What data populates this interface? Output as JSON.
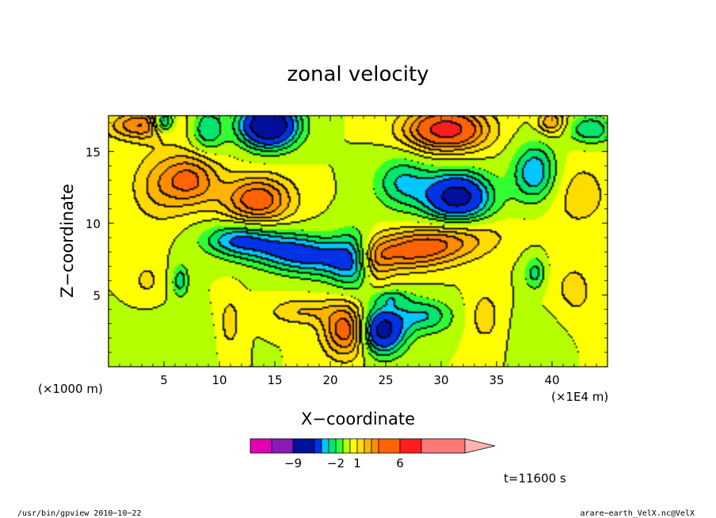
{
  "chart_data": {
    "type": "heatmap",
    "title": "zonal velocity",
    "xlabel": "X−coordinate",
    "ylabel": "Z−coordinate",
    "x_scale_label": "(×1E4 m)",
    "y_scale_label": "(×1000 m)",
    "xlim": [
      0,
      45
    ],
    "ylim": [
      0,
      17.5
    ],
    "x_ticks": [
      5,
      10,
      15,
      20,
      25,
      30,
      35,
      40
    ],
    "x_tick_labels": [
      "5",
      "10",
      "15",
      "20",
      "25",
      "30",
      "35",
      "40"
    ],
    "y_ticks": [
      5,
      10,
      15
    ],
    "y_tick_labels": [
      "5",
      "10",
      "15"
    ],
    "colorbar": {
      "levels": [
        -12,
        -9,
        -6,
        -4,
        -3,
        -2,
        -1,
        0,
        1,
        2,
        3,
        4,
        6,
        9,
        12
      ],
      "labels": [
        {
          "value": -9,
          "text": "−9"
        },
        {
          "value": -2,
          "text": "−2"
        },
        {
          "value": 1,
          "text": "1"
        },
        {
          "value": 6,
          "text": "6"
        }
      ],
      "colors": [
        "#e000b4",
        "#8a1ab4",
        "#00109c",
        "#0032e6",
        "#00c8ff",
        "#00e66e",
        "#32ff32",
        "#b4ff00",
        "#ffff00",
        "#ffdc00",
        "#ffb400",
        "#ff8c00",
        "#ff6400",
        "#ff1e1e",
        "#ff7878",
        "#ffb4b4"
      ]
    },
    "blobs": [
      {
        "x": 22.3,
        "z": 7.5,
        "sx": 2.2,
        "sz": 2.0,
        "v": -4,
        "rot": 0
      },
      {
        "x": 17.5,
        "z": 7.8,
        "sx": 5.5,
        "sz": 1.4,
        "v": -5,
        "rot": -0.12
      },
      {
        "x": 11.5,
        "z": 8.8,
        "sx": 3.0,
        "sz": 1.1,
        "v": -3,
        "rot": 0
      },
      {
        "x": 21.5,
        "z": 2.5,
        "sx": 2.0,
        "sz": 1.8,
        "v": 5,
        "rot": 0
      },
      {
        "x": 17.5,
        "z": 3.8,
        "sx": 3.0,
        "sz": 0.9,
        "v": 2,
        "rot": 0
      },
      {
        "x": 28.0,
        "z": 8.2,
        "sx": 6.0,
        "sz": 1.4,
        "v": 5,
        "rot": 0.12
      },
      {
        "x": 24.0,
        "z": 7.2,
        "sx": 1.5,
        "sz": 1.8,
        "v": 3,
        "rot": 0
      },
      {
        "x": 24.7,
        "z": 2.5,
        "sx": 2.0,
        "sz": 1.6,
        "v": -7,
        "rot": 0
      },
      {
        "x": 28.5,
        "z": 3.5,
        "sx": 2.5,
        "sz": 1.2,
        "v": -3,
        "rot": 0
      },
      {
        "x": 25.5,
        "z": 4.8,
        "sx": 1.8,
        "sz": 0.6,
        "v": -2,
        "rot": 0
      },
      {
        "x": 13.5,
        "z": 11.6,
        "sx": 3.0,
        "sz": 1.6,
        "v": 5,
        "rot": 0
      },
      {
        "x": 7.5,
        "z": 13.0,
        "sx": 2.5,
        "sz": 1.8,
        "v": 4,
        "rot": 0
      },
      {
        "x": 4.5,
        "z": 12.5,
        "sx": 2.5,
        "sz": 2.5,
        "v": 2,
        "rot": 0
      },
      {
        "x": 31.5,
        "z": 11.8,
        "sx": 3.0,
        "sz": 1.7,
        "v": -7,
        "rot": 0
      },
      {
        "x": 26.5,
        "z": 12.8,
        "sx": 2.5,
        "sz": 1.8,
        "v": -3,
        "rot": 0
      },
      {
        "x": 38.5,
        "z": 13.5,
        "sx": 2.0,
        "sz": 2.0,
        "v": -4,
        "rot": 0
      },
      {
        "x": 42.5,
        "z": 12.0,
        "sx": 3.0,
        "sz": 2.5,
        "v": 1.5,
        "rot": 0
      },
      {
        "x": 14.5,
        "z": 16.8,
        "sx": 2.5,
        "sz": 1.5,
        "v": -9,
        "rot": 0
      },
      {
        "x": 30.5,
        "z": 16.5,
        "sx": 3.5,
        "sz": 1.4,
        "v": 7,
        "rot": 0
      },
      {
        "x": 3.0,
        "z": 16.8,
        "sx": 3.0,
        "sz": 1.0,
        "v": 4,
        "rot": 0
      },
      {
        "x": 5.0,
        "z": 17.0,
        "sx": 1.0,
        "sz": 0.8,
        "v": -5,
        "rot": 0
      },
      {
        "x": 9.0,
        "z": 16.5,
        "sx": 1.5,
        "sz": 1.5,
        "v": -3,
        "rot": 0
      },
      {
        "x": 43.5,
        "z": 16.5,
        "sx": 2.0,
        "sz": 1.0,
        "v": -3,
        "rot": 0
      },
      {
        "x": 40.0,
        "z": 17.0,
        "sx": 1.2,
        "sz": 0.8,
        "v": 3,
        "rot": 0
      },
      {
        "x": 11.0,
        "z": 3.0,
        "sx": 1.0,
        "sz": 2.0,
        "v": 1.5,
        "rot": 0
      },
      {
        "x": 34.0,
        "z": 3.5,
        "sx": 1.5,
        "sz": 2.0,
        "v": 1.5,
        "rot": 0
      },
      {
        "x": 3.5,
        "z": 6.0,
        "sx": 1.5,
        "sz": 1.5,
        "v": 1.2,
        "rot": 0
      },
      {
        "x": 42.0,
        "z": 5.0,
        "sx": 2.5,
        "sz": 3.0,
        "v": 1.3,
        "rot": 0
      },
      {
        "x": 6.5,
        "z": 6.0,
        "sx": 0.8,
        "sz": 1.2,
        "v": -2.5,
        "rot": 0
      },
      {
        "x": 38.5,
        "z": 6.5,
        "sx": 1.0,
        "sz": 1.2,
        "v": -2.5,
        "rot": 0
      },
      {
        "x": 40.0,
        "z": 2.5,
        "sx": 3.0,
        "sz": 2.0,
        "v": -0.7,
        "rot": 0
      },
      {
        "x": 5.0,
        "z": 2.0,
        "sx": 4.0,
        "sz": 1.8,
        "v": -0.7,
        "rot": 0
      }
    ]
  },
  "annotation": {
    "time_label": "t=11600 s"
  },
  "footer": {
    "left": "/usr/bin/gpview  2010−10−22",
    "right": "arare−earth_VelX.nc@VelX"
  }
}
